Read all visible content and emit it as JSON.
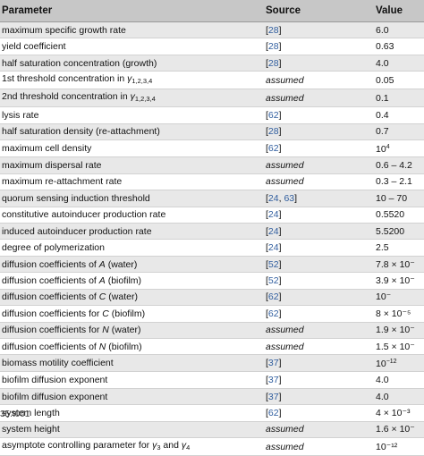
{
  "table": {
    "headers": {
      "parameter": "Parameter",
      "source": "Source",
      "value": "Value"
    },
    "rows": [
      {
        "parameter": "maximum specific growth rate",
        "refs": [
          "28"
        ],
        "source_text": "",
        "value": "6.0"
      },
      {
        "parameter": "yield coefficient",
        "refs": [
          "28"
        ],
        "source_text": "",
        "value": "0.63"
      },
      {
        "parameter": "half saturation concentration (growth)",
        "refs": [
          "28"
        ],
        "source_text": "",
        "value": "4.0"
      },
      {
        "parameter": "1st threshold concentration in ",
        "symbol": "γ",
        "symbol_sub": "1,2,3,4",
        "refs": [],
        "source_text": "assumed",
        "value": "0.05"
      },
      {
        "parameter": "2nd threshold concentration in ",
        "symbol": "γ",
        "symbol_sub": "1,2,3,4",
        "refs": [],
        "source_text": "assumed",
        "value": "0.1"
      },
      {
        "parameter": "lysis rate",
        "refs": [
          "62"
        ],
        "source_text": "",
        "value": "0.4"
      },
      {
        "parameter": "half saturation density (re-attachment)",
        "refs": [
          "28"
        ],
        "source_text": "",
        "value": "0.7"
      },
      {
        "parameter": "maximum cell density",
        "refs": [
          "62"
        ],
        "source_text": "",
        "value": "10",
        "value_sup": "4"
      },
      {
        "parameter": "maximum dispersal rate",
        "refs": [],
        "source_text": "assumed",
        "value": "0.6 – 4.2"
      },
      {
        "parameter": "maximum re-attachment rate",
        "refs": [],
        "source_text": "assumed",
        "value": "0.3 – 2.1"
      },
      {
        "parameter": "quorum sensing induction threshold",
        "refs": [
          "24",
          "63"
        ],
        "source_text": "",
        "value": "10 – 70"
      },
      {
        "parameter": "constitutive autoinducer production rate",
        "refs": [
          "24"
        ],
        "source_text": "",
        "value": "0.5520"
      },
      {
        "parameter": "induced autoinducer production rate",
        "refs": [
          "24"
        ],
        "source_text": "",
        "value": "5.5200"
      },
      {
        "parameter": "degree of polymerization",
        "refs": [
          "24"
        ],
        "source_text": "",
        "value": "2.5"
      },
      {
        "parameter": "diffusion coefficients of ",
        "symbol": "A",
        "parameter_suffix": " (water)",
        "refs": [
          "52"
        ],
        "source_text": "",
        "value": "7.8 × 10⁻"
      },
      {
        "parameter": "diffusion coefficients of ",
        "symbol": "A",
        "parameter_suffix": " (biofilm)",
        "refs": [
          "52"
        ],
        "source_text": "",
        "value": "3.9 × 10⁻"
      },
      {
        "parameter": "diffusion coefficients of ",
        "symbol": "C",
        "parameter_suffix": " (water)",
        "refs": [
          "62"
        ],
        "source_text": "",
        "value": "10⁻"
      },
      {
        "parameter": "diffusion coefficients for ",
        "symbol": "C",
        "parameter_suffix": " (biofilm)",
        "refs": [
          "62"
        ],
        "source_text": "",
        "value": "8 × 10⁻⁵"
      },
      {
        "parameter": "diffusion coefficients for ",
        "symbol": "N",
        "parameter_suffix": " (water)",
        "refs": [],
        "source_text": "assumed",
        "value": "1.9 × 10⁻"
      },
      {
        "parameter": "diffusion coefficients of ",
        "symbol": "N",
        "parameter_suffix": " (biofilm)",
        "refs": [],
        "source_text": "assumed",
        "value": "1.5 × 10⁻"
      },
      {
        "parameter": "biomass motility coefficient",
        "refs": [
          "37"
        ],
        "source_text": "",
        "value": "10",
        "value_sup": "−12"
      },
      {
        "parameter": "biofilm diffusion exponent",
        "refs": [
          "37"
        ],
        "source_text": "",
        "value": "4.0"
      },
      {
        "parameter": "biofilm diffusion exponent",
        "refs": [
          "37"
        ],
        "source_text": "",
        "value": "4.0"
      },
      {
        "parameter": "system length",
        "refs": [
          "62"
        ],
        "source_text": "",
        "value": "4 × 10⁻³"
      },
      {
        "parameter": "system height",
        "refs": [],
        "source_text": "assumed",
        "value": "1.6 × 10⁻"
      },
      {
        "parameter": "asymptote controlling parameter for ",
        "symbol": "γ",
        "symbol_sub": "3",
        "parameter_mid": " and ",
        "symbol2": "γ",
        "symbol2_sub": "4",
        "refs": [],
        "source_text": "assumed",
        "value": "10⁻¹²"
      }
    ]
  },
  "footer": {
    "label": "35.t001"
  },
  "colors": {
    "header_bg": "#c7c7c7",
    "stripe_bg": "#e8e8e8",
    "ref_link": "#2f5d9e"
  }
}
